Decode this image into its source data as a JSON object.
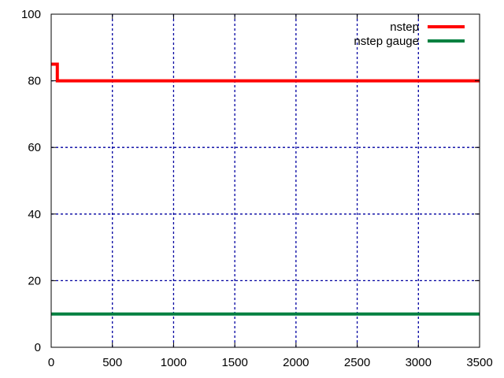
{
  "chart_data": {
    "type": "line",
    "title": "",
    "xlabel": "",
    "ylabel": "",
    "xlim": [
      0,
      3500
    ],
    "ylim": [
      0,
      100
    ],
    "grid": true,
    "legend_position": "top-right",
    "x_ticks": [
      0,
      500,
      1000,
      1500,
      2000,
      2500,
      3000,
      3500
    ],
    "y_ticks": [
      0,
      20,
      40,
      60,
      80,
      100
    ],
    "series": [
      {
        "name": "nstep",
        "color": "#ff0000",
        "style": "step",
        "points": [
          [
            0,
            85
          ],
          [
            50,
            85
          ],
          [
            50,
            80
          ],
          [
            3500,
            80
          ]
        ]
      },
      {
        "name": "nstep gauge",
        "color": "#008040",
        "style": "line",
        "points": [
          [
            0,
            10
          ],
          [
            3500,
            10
          ]
        ]
      }
    ]
  }
}
